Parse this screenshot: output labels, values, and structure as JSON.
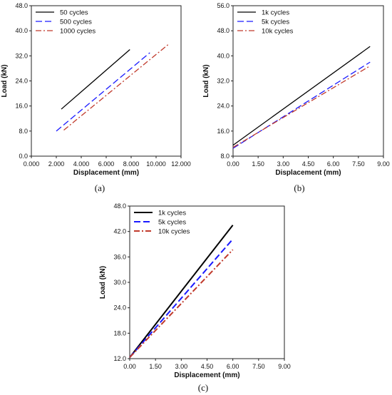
{
  "chart_data": [
    {
      "id": "a",
      "type": "line",
      "caption": "(a)",
      "xlabel": "Displacement (mm)",
      "ylabel": "Load (kN)",
      "xlim": [
        0,
        12
      ],
      "ylim": [
        0,
        48
      ],
      "xticks": [
        "0.000",
        "2.000",
        "4.000",
        "6.000",
        "8.000",
        "10.000",
        "12.000"
      ],
      "yticks": [
        "0.0",
        "8.0",
        "16.0",
        "24.0",
        "32.0",
        "40.0",
        "48.0"
      ],
      "grid": false,
      "legend_position": "top-left",
      "series": [
        {
          "name": "50 cycles",
          "color": "#000000",
          "dash": "solid",
          "x": [
            2.4,
            7.9
          ],
          "y": [
            15.0,
            34.0
          ]
        },
        {
          "name": "500 cycles",
          "color": "#1a1aff",
          "dash": "dash",
          "x": [
            2.0,
            9.5
          ],
          "y": [
            8.0,
            33.0
          ]
        },
        {
          "name": "1000 cycles",
          "color": "#c0392b",
          "dash": "dashdot",
          "x": [
            2.6,
            11.0
          ],
          "y": [
            8.3,
            35.7
          ]
        }
      ]
    },
    {
      "id": "b",
      "type": "line",
      "caption": "(b)",
      "xlabel": "Displacement (mm)",
      "ylabel": "Load (kN)",
      "xlim": [
        0,
        9
      ],
      "ylim": [
        8,
        56
      ],
      "xticks": [
        "0.00",
        "1.50",
        "3.00",
        "4.50",
        "6.00",
        "7.50",
        "9.00"
      ],
      "yticks": [
        "8.0",
        "16.0",
        "24.0",
        "32.0",
        "40.0",
        "48.0",
        "56.0"
      ],
      "grid": false,
      "legend_position": "top-left",
      "series": [
        {
          "name": "1k cycles",
          "color": "#000000",
          "dash": "solid",
          "x": [
            0.0,
            8.2
          ],
          "y": [
            11.5,
            43.0
          ]
        },
        {
          "name": "5k cycles",
          "color": "#1a1aff",
          "dash": "dash",
          "x": [
            0.0,
            8.2
          ],
          "y": [
            10.5,
            38.0
          ]
        },
        {
          "name": "10k cycles",
          "color": "#c0392b",
          "dash": "dashdot",
          "x": [
            0.0,
            8.2
          ],
          "y": [
            10.8,
            36.8
          ]
        }
      ]
    },
    {
      "id": "c",
      "type": "line",
      "caption": "(c)",
      "xlabel": "Displacement (mm)",
      "ylabel": "Load (kN)",
      "xlim": [
        0,
        9
      ],
      "ylim": [
        12,
        48
      ],
      "xticks": [
        "0.00",
        "1.50",
        "3.00",
        "4.50",
        "6.00",
        "7.50",
        "9.00"
      ],
      "yticks": [
        "12.0",
        "18.0",
        "24.0",
        "30.0",
        "36.0",
        "42.0",
        "48.0"
      ],
      "grid": false,
      "legend_position": "top-left",
      "series": [
        {
          "name": "1k cycles",
          "color": "#000000",
          "dash": "solid",
          "x": [
            0.0,
            6.0
          ],
          "y": [
            12.3,
            43.5
          ]
        },
        {
          "name": "5k cycles",
          "color": "#1a1aff",
          "dash": "dash",
          "x": [
            0.0,
            6.0
          ],
          "y": [
            12.3,
            40.2
          ]
        },
        {
          "name": "10k cycles",
          "color": "#c0392b",
          "dash": "dashdot",
          "x": [
            0.0,
            6.0
          ],
          "y": [
            12.3,
            37.7
          ]
        }
      ]
    }
  ]
}
